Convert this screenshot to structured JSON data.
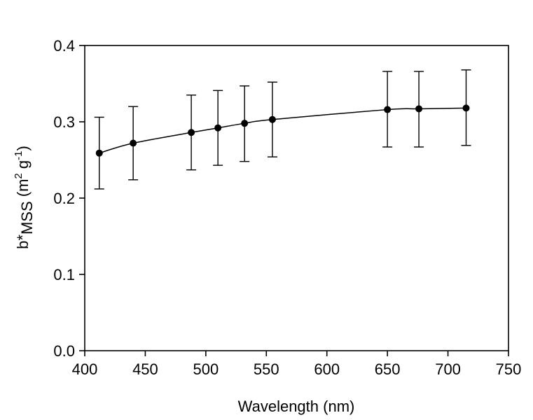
{
  "chart_data": {
    "type": "line",
    "title": "",
    "xlabel": "Wavelength (nm)",
    "ylabel": {
      "base": "b*",
      "subscript": "MSS",
      "unit_open": " (m",
      "unit_sup1": "2",
      "unit_mid": " g",
      "unit_sup2": "-1",
      "unit_close": ")"
    },
    "xlim": [
      400,
      750
    ],
    "ylim": [
      0.0,
      0.4
    ],
    "xticks": [
      "400",
      "450",
      "500",
      "550",
      "600",
      "650",
      "700",
      "750"
    ],
    "yticks": [
      "0.0",
      "0.1",
      "0.2",
      "0.3",
      "0.4"
    ],
    "grid": false,
    "legend": "none",
    "series": [
      {
        "x": [
          412,
          440,
          488,
          510,
          532,
          555,
          650,
          676,
          715
        ],
        "y": [
          0.259,
          0.272,
          0.286,
          0.292,
          0.298,
          0.303,
          0.316,
          0.317,
          0.318
        ],
        "yerr_low": [
          0.212,
          0.224,
          0.237,
          0.243,
          0.248,
          0.254,
          0.267,
          0.267,
          0.269
        ],
        "yerr_high": [
          0.306,
          0.32,
          0.335,
          0.341,
          0.347,
          0.352,
          0.366,
          0.366,
          0.368
        ],
        "color": "#000000"
      }
    ]
  }
}
